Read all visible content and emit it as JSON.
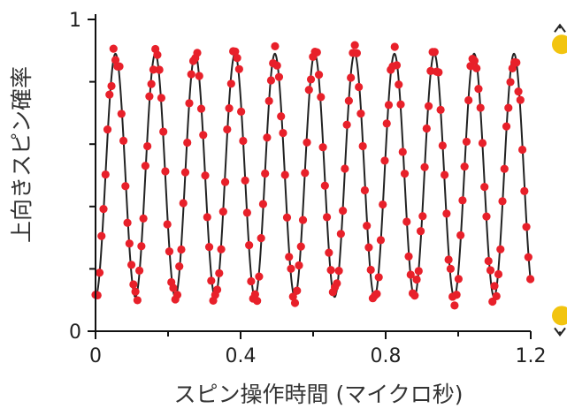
{
  "chart_data": {
    "type": "scatter",
    "xlabel": "スピン操作時間 (マイクロ秒)",
    "ylabel": "上向きスピン確率",
    "xlim": [
      0,
      1.2
    ],
    "ylim": [
      0,
      1
    ],
    "x_ticks": [
      0,
      0.4,
      0.8,
      1.2
    ],
    "x_tick_labels": [
      "0",
      "0.4",
      "0.8",
      "1.2"
    ],
    "y_tick_labels": [
      {
        "value": 0,
        "label": "0"
      },
      {
        "value": 1,
        "label": "1"
      }
    ],
    "y_minor_ticks": [
      0.2,
      0.4,
      0.6,
      0.8
    ],
    "grid": false,
    "series": [
      {
        "kind": "fit-curve",
        "color": "#222222",
        "oscillation": {
          "frequency_mhz": 9.1,
          "phase_rad": 3.1416,
          "center": 0.5,
          "amplitude": 0.39
        },
        "x_range": [
          0,
          1.2
        ]
      },
      {
        "kind": "data-points",
        "color": "#e8202a",
        "point_spacing": 0.0055,
        "noise_amplitude": 0.035,
        "x_range": [
          0,
          1.2
        ]
      }
    ],
    "side_markers": [
      {
        "name": "spin-up-marker",
        "value": 0.92,
        "arrow": "up",
        "color": "#f2c40f"
      },
      {
        "name": "spin-down-marker",
        "value": 0.05,
        "arrow": "down",
        "color": "#f2c40f"
      }
    ]
  },
  "colors": {
    "axis": "#111111",
    "text": "#222222"
  }
}
